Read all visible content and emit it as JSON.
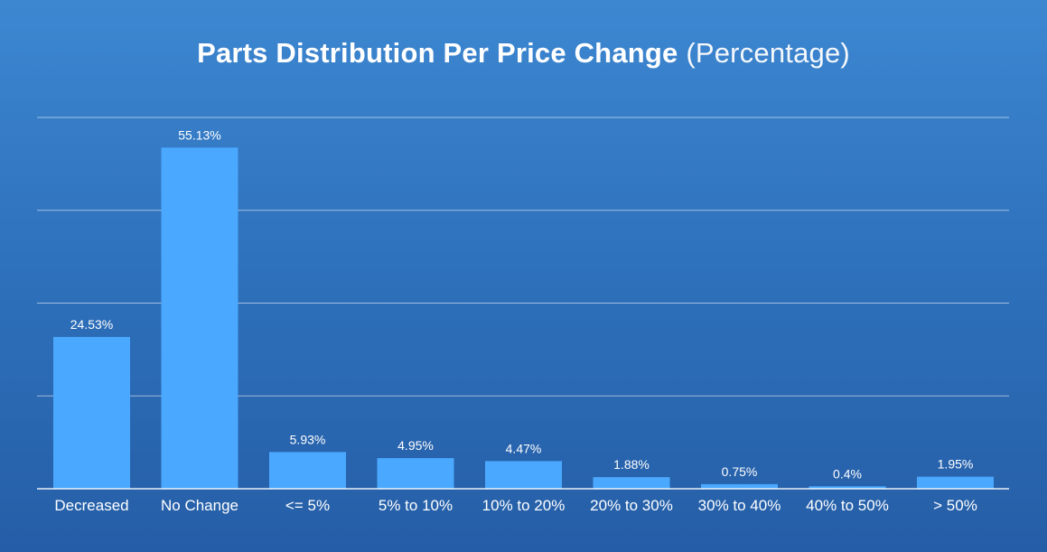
{
  "chart_data": {
    "type": "bar",
    "title": "Parts Distribution Per Price Change",
    "subtitle": "(Percentage)",
    "xlabel": "",
    "ylabel": "",
    "ylim": [
      0,
      60
    ],
    "grid": true,
    "categories": [
      "Decreased",
      "No Change",
      "<= 5%",
      "5% to 10%",
      "10% to 20%",
      "20% to 30%",
      "30% to 40%",
      "40% to 50%",
      "> 50%"
    ],
    "values": [
      24.53,
      55.13,
      5.93,
      4.95,
      4.47,
      1.88,
      0.75,
      0.4,
      1.95
    ],
    "data_labels": [
      "24.53%",
      "55.13%",
      "5.93%",
      "4.95%",
      "4.47%",
      "1.88%",
      "0.75%",
      "0.4%",
      "1.95%"
    ],
    "colors": {
      "bar": "#4aa8ff",
      "background_top": "#3d87d1",
      "background_bottom": "#255ea7"
    }
  }
}
